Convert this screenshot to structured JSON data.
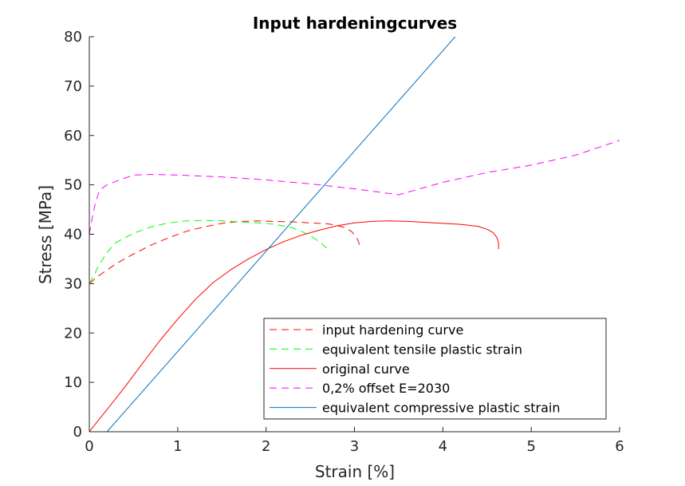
{
  "chart_data": {
    "type": "line",
    "title": "Input hardeningcurves",
    "xlabel": "Strain [%]",
    "ylabel": "Stress [MPa]",
    "xlim": [
      0,
      6
    ],
    "ylim": [
      0,
      80
    ],
    "xticks": [
      0,
      1,
      2,
      3,
      4,
      5,
      6
    ],
    "yticks": [
      0,
      10,
      20,
      30,
      40,
      50,
      60,
      70,
      80
    ],
    "grid": false,
    "legend_position": "bottom-right",
    "series": [
      {
        "name": "input hardening curve",
        "color": "#ff0000",
        "dash": "dashed",
        "x": [
          0,
          0.1,
          0.3,
          0.5,
          0.7,
          0.9,
          1.1,
          1.3,
          1.5,
          1.7,
          1.9,
          2.1,
          2.3,
          2.5,
          2.7,
          2.8,
          2.9,
          2.97,
          3.02,
          3.05,
          3.06,
          3.06
        ],
        "y": [
          30,
          31.5,
          34,
          36,
          37.8,
          39.3,
          40.6,
          41.5,
          42.2,
          42.6,
          42.7,
          42.6,
          42.5,
          42.3,
          42.1,
          41.8,
          41.3,
          40.5,
          39.5,
          38.3,
          37.3,
          37
        ]
      },
      {
        "name": "equivalent tensile plastic strain",
        "color": "#00ff00",
        "dash": "dashed",
        "x": [
          0,
          0.05,
          0.1,
          0.2,
          0.3,
          0.5,
          0.7,
          0.9,
          1.1,
          1.3,
          1.5,
          1.7,
          1.9,
          2.1,
          2.3,
          2.4,
          2.5,
          2.6,
          2.7
        ],
        "y": [
          30,
          31.5,
          33.5,
          36.3,
          38.3,
          40.2,
          41.5,
          42.3,
          42.7,
          42.8,
          42.7,
          42.5,
          42.3,
          42,
          41.3,
          40.6,
          39.7,
          38.5,
          37
        ]
      },
      {
        "name": "original curve",
        "color": "#ff0000",
        "dash": "solid",
        "x": [
          0,
          0.2,
          0.4,
          0.6,
          0.8,
          1.0,
          1.2,
          1.4,
          1.6,
          1.8,
          2.0,
          2.2,
          2.4,
          2.6,
          2.8,
          3.0,
          3.2,
          3.4,
          3.6,
          3.8,
          4.0,
          4.2,
          4.4,
          4.5,
          4.57,
          4.61,
          4.63,
          4.63
        ],
        "y": [
          0,
          4.5,
          9,
          13.8,
          18.5,
          22.8,
          26.8,
          30.2,
          32.8,
          35,
          36.9,
          38.5,
          39.8,
          40.8,
          41.7,
          42.3,
          42.6,
          42.7,
          42.6,
          42.4,
          42.2,
          42,
          41.6,
          41,
          40.3,
          39.4,
          38.3,
          37
        ]
      },
      {
        "name": "0,2% offset E=2030",
        "color": "#ff00ff",
        "dash": "dashed",
        "x": [
          0,
          0.03,
          0.07,
          0.12,
          0.2,
          0.3,
          0.5,
          0.7,
          1.0,
          1.5,
          2.0,
          2.5,
          3.0,
          3.5,
          4.0,
          4.5,
          5.0,
          5.5,
          6.0
        ],
        "y": [
          40,
          43,
          46.5,
          49,
          50,
          50.7,
          52,
          52.1,
          52,
          51.6,
          51,
          50.2,
          49.2,
          48,
          50.5,
          52.5,
          54,
          56,
          59
        ]
      },
      {
        "name": "equivalent compressive plastic strain",
        "color": "#0072bd",
        "dash": "solid",
        "x": [
          0.2,
          4.14
        ],
        "y": [
          0,
          80
        ]
      }
    ]
  }
}
